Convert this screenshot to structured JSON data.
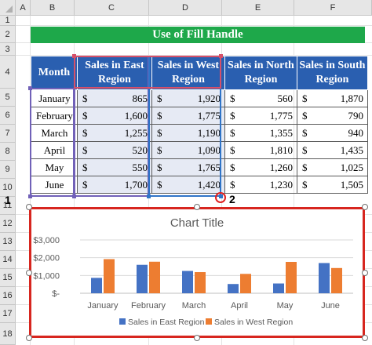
{
  "columns": [
    "A",
    "B",
    "C",
    "D",
    "E",
    "F"
  ],
  "rows": [
    "1",
    "2",
    "3",
    "4",
    "5",
    "6",
    "7",
    "8",
    "9",
    "10",
    "11",
    "12",
    "13",
    "14",
    "15",
    "16",
    "17",
    "18"
  ],
  "title": "Use of Fill Handle",
  "table": {
    "headers": {
      "month": "Month",
      "east": "Sales in East Region",
      "west": "Sales in West Region",
      "north": "Sales in North Region",
      "south": "Sales in South Region"
    },
    "currency": "$",
    "rows": [
      {
        "month": "January",
        "east": "865",
        "west": "1,920",
        "north": "560",
        "south": "1,870"
      },
      {
        "month": "February",
        "east": "1,600",
        "west": "1,775",
        "north": "1,775",
        "south": "790"
      },
      {
        "month": "March",
        "east": "1,255",
        "west": "1,190",
        "north": "1,355",
        "south": "940"
      },
      {
        "month": "April",
        "east": "520",
        "west": "1,090",
        "north": "1,810",
        "south": "1,435"
      },
      {
        "month": "May",
        "east": "550",
        "west": "1,765",
        "north": "1,260",
        "south": "1,025"
      },
      {
        "month": "June",
        "east": "1,700",
        "west": "1,420",
        "north": "1,230",
        "south": "1,505"
      }
    ]
  },
  "badges": {
    "one": "1",
    "two": "2"
  },
  "chart_data": {
    "type": "bar",
    "title": "Chart Title",
    "categories": [
      "January",
      "February",
      "March",
      "April",
      "May",
      "June"
    ],
    "series": [
      {
        "name": "Sales in East Region",
        "values": [
          865,
          1600,
          1255,
          520,
          550,
          1700
        ],
        "color": "#4472c4"
      },
      {
        "name": "Sales in West Region",
        "values": [
          1920,
          1775,
          1190,
          1090,
          1765,
          1420
        ],
        "color": "#ed7d31"
      }
    ],
    "yticks": [
      "$-",
      "$1,000",
      "$2,000",
      "$3,000"
    ],
    "ylim": [
      0,
      3000
    ],
    "grid": true,
    "legend": "bottom"
  },
  "colors": {
    "title_bg": "#1ea84a",
    "header_bg": "#2a5fb0",
    "east": "#4472c4",
    "west": "#ed7d31",
    "frame": "#d7261f"
  }
}
